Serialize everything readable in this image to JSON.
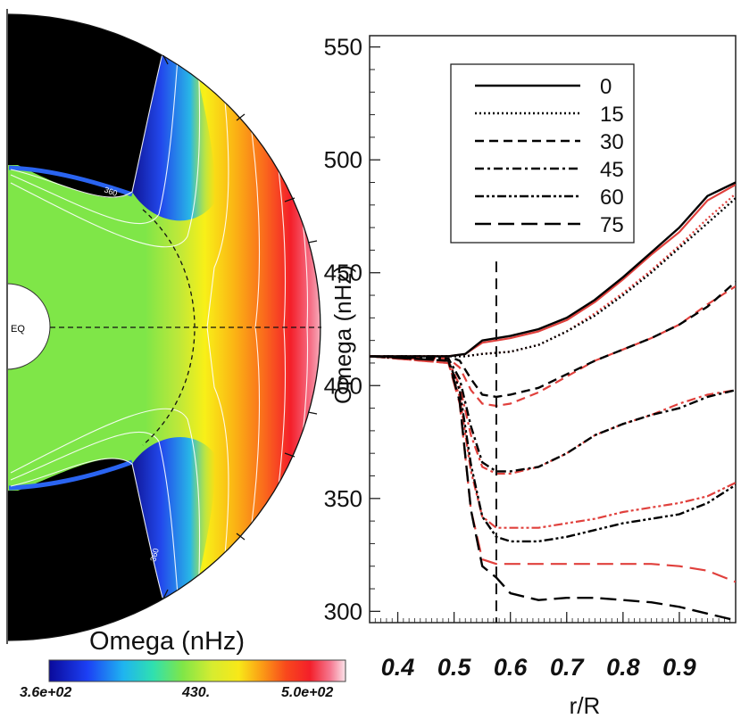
{
  "left_panel": {
    "colorbar_title": "Omega (nHz)",
    "colorbar_min_label": "3.6e+02",
    "colorbar_mid_label": "430.",
    "colorbar_max_label": "5.0e+02",
    "equator_label": "EQ",
    "contour_label": "360"
  },
  "chart_data": {
    "type": "line",
    "title": "",
    "xlabel": "r/R",
    "ylabel": "Omega (nHz)",
    "xlim": [
      0.35,
      1.0
    ],
    "ylim": [
      295,
      555
    ],
    "xticks": [
      0.4,
      0.5,
      0.6,
      0.7,
      0.8,
      0.9
    ],
    "xtick_labels": [
      "0.4",
      "0.5",
      "0.6",
      "0.7",
      "0.8",
      "0.9"
    ],
    "yticks": [
      300,
      350,
      400,
      450,
      500,
      550
    ],
    "ytick_labels": [
      "300",
      "350",
      "400",
      "450",
      "500",
      "550"
    ],
    "vline_x": 0.575,
    "legend_position": "top-left",
    "series": [
      {
        "name": "0",
        "style": "solid",
        "x": [
          0.35,
          0.49,
          0.52,
          0.55,
          0.6,
          0.65,
          0.7,
          0.75,
          0.8,
          0.85,
          0.9,
          0.95,
          1.0
        ],
        "y": [
          413,
          413,
          414,
          420,
          422,
          425,
          430,
          438,
          448,
          459,
          470,
          484,
          490
        ],
        "red_y": [
          413,
          413,
          414,
          419,
          421,
          424,
          429,
          437,
          447,
          458,
          468,
          482,
          489
        ]
      },
      {
        "name": "15",
        "style": "dotted",
        "x": [
          0.35,
          0.49,
          0.52,
          0.55,
          0.6,
          0.65,
          0.7,
          0.75,
          0.8,
          0.85,
          0.9,
          0.95,
          1.0
        ],
        "y": [
          413,
          413,
          413,
          414,
          415,
          418,
          424,
          431,
          440,
          450,
          461,
          472,
          483
        ],
        "red_y": [
          413,
          413,
          413,
          414,
          415,
          418,
          424,
          432,
          441,
          451,
          462,
          474,
          485
        ]
      },
      {
        "name": "30",
        "style": "dashed",
        "x": [
          0.35,
          0.49,
          0.51,
          0.53,
          0.55,
          0.575,
          0.6,
          0.65,
          0.7,
          0.75,
          0.8,
          0.85,
          0.9,
          0.95,
          1.0
        ],
        "y": [
          413,
          413,
          411,
          403,
          396,
          395,
          396,
          399,
          405,
          411,
          416,
          421,
          427,
          435,
          446
        ],
        "red_y": [
          413,
          412,
          408,
          398,
          392,
          391,
          392,
          397,
          404,
          411,
          416,
          421,
          427,
          436,
          444
        ]
      },
      {
        "name": "45",
        "style": "dashdot",
        "x": [
          0.35,
          0.49,
          0.51,
          0.53,
          0.55,
          0.575,
          0.6,
          0.65,
          0.7,
          0.75,
          0.8,
          0.85,
          0.9,
          0.95,
          1.0
        ],
        "y": [
          413,
          412,
          403,
          382,
          366,
          362,
          362,
          364,
          370,
          378,
          383,
          387,
          390,
          395,
          398
        ],
        "red_y": [
          413,
          411,
          400,
          378,
          364,
          361,
          361,
          364,
          370,
          378,
          383,
          387,
          392,
          396,
          398
        ]
      },
      {
        "name": "60",
        "style": "dashdotdot",
        "x": [
          0.35,
          0.49,
          0.51,
          0.53,
          0.55,
          0.575,
          0.6,
          0.65,
          0.7,
          0.75,
          0.8,
          0.85,
          0.9,
          0.95,
          1.0
        ],
        "y": [
          413,
          411,
          398,
          365,
          342,
          333,
          331,
          331,
          333,
          336,
          339,
          341,
          343,
          348,
          356
        ],
        "red_y": [
          413,
          410,
          395,
          362,
          342,
          337,
          337,
          337,
          339,
          341,
          344,
          346,
          348,
          351,
          357
        ]
      },
      {
        "name": "75",
        "style": "longdash",
        "x": [
          0.35,
          0.49,
          0.51,
          0.53,
          0.55,
          0.575,
          0.6,
          0.65,
          0.7,
          0.75,
          0.8,
          0.85,
          0.9,
          0.95,
          1.0
        ],
        "y": [
          413,
          411,
          393,
          345,
          320,
          315,
          308,
          305,
          306,
          306,
          305,
          304,
          302,
          299,
          296
        ],
        "red_y": [
          413,
          410,
          392,
          345,
          323,
          321,
          321,
          321,
          321,
          321,
          321,
          321,
          320,
          318,
          313
        ]
      }
    ]
  }
}
